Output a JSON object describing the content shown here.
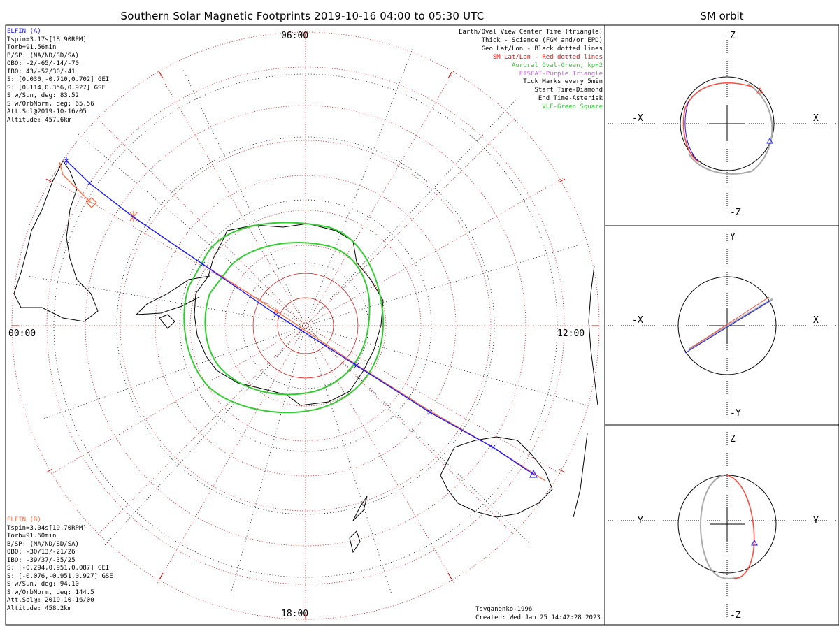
{
  "title": "Southern Solar Magnetic Footprints 2019-10-16 04:00 to 05:30 UTC",
  "orbit_title": "SM orbit",
  "hours": {
    "top": "06:00",
    "left": "00:00",
    "right": "12:00",
    "bottom": "18:00"
  },
  "elfin_a": {
    "name": "ELFIN (A)",
    "color": "#1a1aff",
    "lines": [
      "Tspin=3.17s[18.90RPM]",
      "Torb=91.56min",
      "B/SP: (NA/ND/SD/SA)",
      "OBO: -2/-65/-14/-70",
      "IBO: 43/-52/30/-41",
      "S: [0.030,-0.710,0.702] GEI",
      "S: [0.114,0.356,0.927] GSE",
      "S w/Sun, deg: 83.52",
      "S w/OrbNorm, deg: 65.56",
      "Att.Sol@2019-10-16/05",
      "Altitude: 457.6km"
    ]
  },
  "elfin_b": {
    "name": "ELFIN (B)",
    "color": "#ff6a3d",
    "lines": [
      "Tspin=3.04s[19.70RPM]",
      "Torb=91.60min",
      "B/SP: (NA/ND/SD/SA)",
      "OBO: -30/13/-21/26",
      "IBO: -39/37/-35/25",
      "S: [-0.294,0.951,0.087] GEI",
      "S: [-0.076,-0.951,0.927] GSE",
      "S w/Sun, deg: 94.10",
      "S w/OrbNorm, deg: 144.5",
      "Att.Sol@: 2019-10-16/00",
      "Altitude: 458.2km"
    ]
  },
  "legend": [
    {
      "text": "Earth/Oval View Center Time (triangle)",
      "color": "#000000"
    },
    {
      "text": "Thick - Science (FGM and/or EPD)",
      "color": "#000000"
    },
    {
      "text": "Geo Lat/Lon - Black dotted lines",
      "color": "#000000"
    },
    {
      "text": "SM Lat/Lon - Red dotted lines",
      "color": "#ff0000"
    },
    {
      "text": "Auroral Oval-Green, kp=2",
      "color": "#33cc33"
    },
    {
      "text": "EISCAT-Purple Triangle",
      "color": "#cc55ee"
    },
    {
      "text": "Tick Marks every 5min",
      "color": "#000000"
    },
    {
      "text": "Start Time-Diamond",
      "color": "#000000"
    },
    {
      "text": "End Time-Asterisk",
      "color": "#000000"
    },
    {
      "text": "VLF-Green Square",
      "color": "#33cc33"
    }
  ],
  "credit": {
    "model": "Tsyganenko-1996",
    "created": "Created: Wed Jan 25 14:42:28 2023"
  },
  "panels": [
    {
      "left": "-X",
      "right": "X",
      "top": "Z",
      "bottom": "-Z"
    },
    {
      "left": "-X",
      "right": "X",
      "top": "Y",
      "bottom": "-Y"
    },
    {
      "left": "-Y",
      "right": "Y",
      "top": "Z",
      "bottom": "-Z"
    }
  ],
  "colors": {
    "oval": "#33cc33",
    "sm_grid": "#dd0000",
    "track_a": "#1a1aff",
    "track_b": "#ff6a3d",
    "orbit_gray": "#aaaaaa"
  }
}
